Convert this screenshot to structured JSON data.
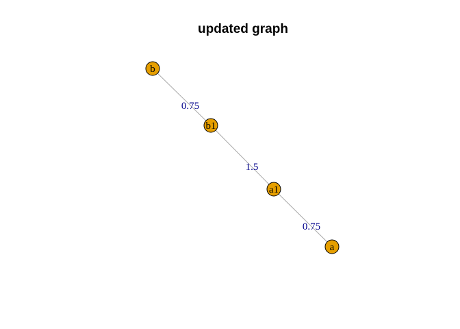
{
  "title": "updated graph",
  "colors": {
    "node_fill": "#E69F00",
    "node_border": "#000000",
    "edge_color": "#A9A9A9",
    "edge_label_color": "#00008B",
    "title_color": "#000000"
  },
  "graph": {
    "nodes": [
      {
        "id": "b",
        "label": "b"
      },
      {
        "id": "b1",
        "label": "b1"
      },
      {
        "id": "a1",
        "label": "a1"
      },
      {
        "id": "a",
        "label": "a"
      }
    ],
    "edges": [
      {
        "from": "b",
        "to": "b1",
        "label": "0.75"
      },
      {
        "from": "b1",
        "to": "a1",
        "label": "1.5"
      },
      {
        "from": "a1",
        "to": "a",
        "label": "0.75"
      }
    ]
  }
}
